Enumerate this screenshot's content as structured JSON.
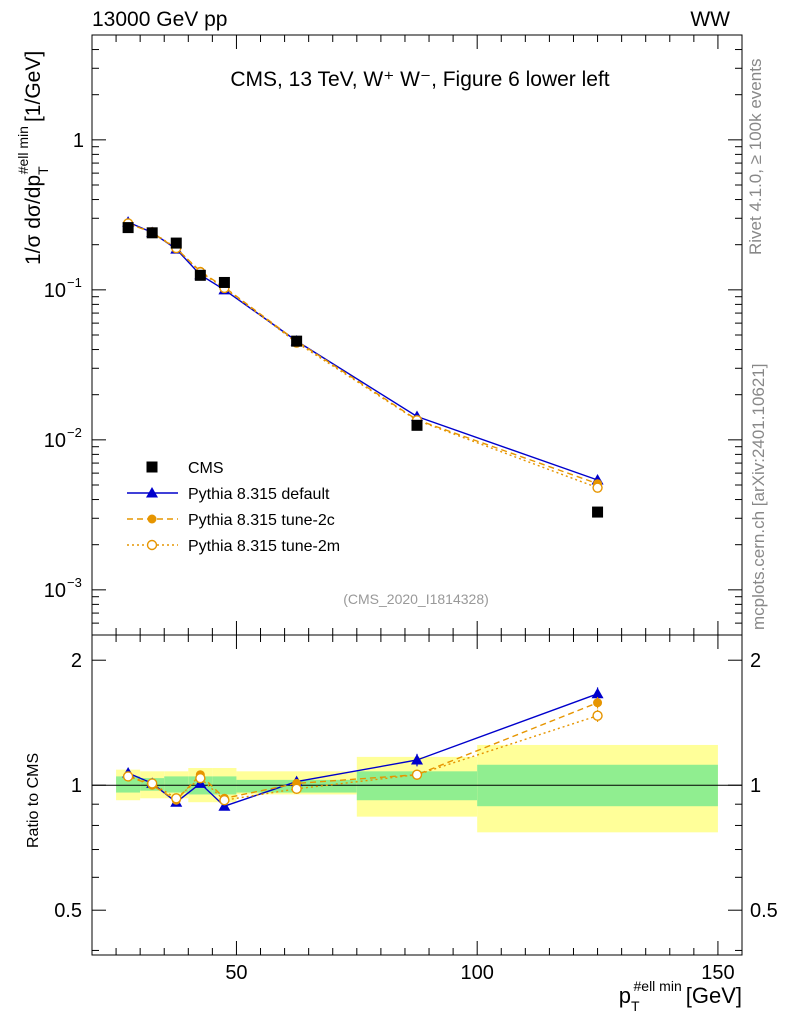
{
  "header": {
    "left": "13000 GeV pp",
    "right": "WW"
  },
  "side_labels": {
    "rivet": "Rivet 4.1.0, ≥ 100k events",
    "mcplots": "mcplots.cern.ch [arXiv:2401.10621]"
  },
  "chart_data": {
    "type": "line",
    "title": "CMS, 13 TeV, W⁺ W⁻, Figure 6 lower left",
    "analysis_label": "(CMS_2020_I1814328)",
    "xlabel": "p_T^{#ell min} [GeV]",
    "xlabel_parts": {
      "main": "p",
      "sub": "T",
      "sup": "#ell min",
      "unit": "[GeV]"
    },
    "ylabel": "1/σ dσ/dp_T^{#ell min} [1/GeV]",
    "ylabel_parts": {
      "main": "1/σ dσ/dp",
      "sub": "T",
      "sup": "#ell min",
      "unit": "[1/GeV]"
    },
    "ratio_ylabel": "Ratio to CMS",
    "xlim": [
      20,
      155
    ],
    "ylim": [
      0.0005,
      5
    ],
    "yscale": "log",
    "ratio_ylim": [
      0.39,
      2.3
    ],
    "ratio_yscale": "log",
    "x_ticks": [
      50,
      100,
      150
    ],
    "x_tick_labels": [
      "50",
      "100",
      "150"
    ],
    "y_ticks": [
      1,
      0.1,
      0.01,
      0.001
    ],
    "y_tick_labels": [
      {
        "base": "1",
        "exp": ""
      },
      {
        "base": "10",
        "exp": "−1"
      },
      {
        "base": "10",
        "exp": "−2"
      },
      {
        "base": "10",
        "exp": "−3"
      }
    ],
    "ratio_ticks": [
      2,
      1,
      0.5
    ],
    "ratio_tick_labels": [
      "2",
      "1",
      "0.5"
    ],
    "bins": [
      [
        25,
        30
      ],
      [
        30,
        35
      ],
      [
        35,
        40
      ],
      [
        40,
        45
      ],
      [
        45,
        50
      ],
      [
        50,
        75
      ],
      [
        75,
        100
      ],
      [
        100,
        150
      ]
    ],
    "data": {
      "name": "CMS",
      "x": [
        27.5,
        32.5,
        37.5,
        42.5,
        47.5,
        62.5,
        87.5,
        125
      ],
      "y": [
        0.26,
        0.24,
        0.205,
        0.125,
        0.112,
        0.0455,
        0.0125,
        0.0033
      ],
      "band_inner": [
        [
          0.96,
          1.05
        ],
        [
          0.97,
          1.04
        ],
        [
          0.96,
          1.05
        ],
        [
          0.95,
          1.05
        ],
        [
          0.95,
          1.05
        ],
        [
          0.96,
          1.03
        ],
        [
          0.92,
          1.08
        ],
        [
          0.89,
          1.12
        ]
      ],
      "band_outer": [
        [
          0.92,
          1.09
        ],
        [
          0.93,
          1.08
        ],
        [
          0.93,
          1.08
        ],
        [
          0.91,
          1.1
        ],
        [
          0.91,
          1.1
        ],
        [
          0.95,
          1.08
        ],
        [
          0.84,
          1.17
        ],
        [
          0.77,
          1.25
        ]
      ],
      "color": "#000000"
    },
    "series": [
      {
        "name": "Pythia 8.315 default",
        "x": [
          27.5,
          32.5,
          37.5,
          42.5,
          47.5,
          62.5,
          87.5,
          125
        ],
        "y": [
          0.283,
          0.241,
          0.187,
          0.126,
          0.1,
          0.0456,
          0.0143,
          0.0054
        ],
        "ratio": [
          1.07,
          1.01,
          0.91,
          1.01,
          0.89,
          1.02,
          1.15,
          1.66
        ],
        "ratio_err": [
          0.02,
          0.015,
          0.015,
          0.02,
          0.02,
          0.015,
          0.04,
          0.06
        ],
        "color": "#0000cc",
        "line": "solid",
        "marker": "triangle"
      },
      {
        "name": "Pythia 8.315 tune-2c",
        "x": [
          27.5,
          32.5,
          37.5,
          42.5,
          47.5,
          62.5,
          87.5,
          125
        ],
        "y": [
          0.278,
          0.24,
          0.189,
          0.133,
          0.104,
          0.0455,
          0.0136,
          0.0051
        ],
        "ratio": [
          1.05,
          1.0,
          0.92,
          1.06,
          0.93,
          1.01,
          1.06,
          1.58
        ],
        "ratio_err": [
          0.015,
          0.015,
          0.015,
          0.02,
          0.02,
          0.015,
          0.03,
          0.05
        ],
        "color": "#e69500",
        "line": "dashed",
        "marker": "filled-circle"
      },
      {
        "name": "Pythia 8.315 tune-2m",
        "x": [
          27.5,
          32.5,
          37.5,
          42.5,
          47.5,
          62.5,
          87.5,
          125
        ],
        "y": [
          0.277,
          0.242,
          0.19,
          0.131,
          0.103,
          0.0445,
          0.0135,
          0.0048
        ],
        "ratio": [
          1.05,
          1.01,
          0.93,
          1.04,
          0.92,
          0.98,
          1.06,
          1.47
        ],
        "ratio_err": [
          0.015,
          0.015,
          0.015,
          0.02,
          0.02,
          0.015,
          0.03,
          0.05
        ],
        "color": "#e69500",
        "line": "dotted",
        "marker": "open-circle"
      }
    ],
    "band_colors": {
      "inner": "#90ee90",
      "outer": "#ffff99"
    }
  }
}
